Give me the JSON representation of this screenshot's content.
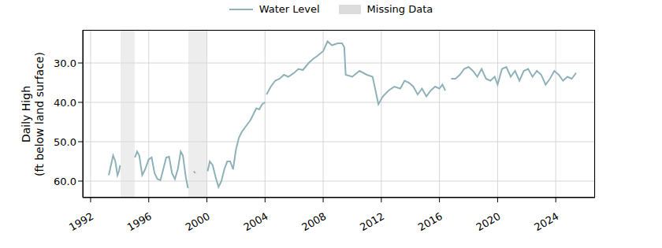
{
  "chart_data": {
    "type": "line",
    "ylabel": [
      "Daily High",
      "(ft below land surface)"
    ],
    "x": [
      1993.25,
      1993.4,
      1993.55,
      1993.7,
      1993.85,
      1993.95,
      1994.03,
      1994.5,
      1995.05,
      1995.2,
      1995.35,
      1995.55,
      1995.75,
      1996.0,
      1996.2,
      1996.4,
      1996.6,
      1996.8,
      1997.0,
      1997.2,
      1997.4,
      1997.6,
      1997.8,
      1998.0,
      1998.2,
      1998.35,
      1998.55,
      1998.7,
      1998.9,
      1999.1,
      1999.2,
      1999.6,
      2000.05,
      2000.2,
      2000.4,
      2000.6,
      2000.8,
      2001.0,
      2001.2,
      2001.4,
      2001.6,
      2001.8,
      2002.0,
      2002.2,
      2002.4,
      2002.6,
      2002.8,
      2003.0,
      2003.2,
      2003.4,
      2003.6,
      2003.8,
      2004.0,
      2004.05,
      2004.1,
      2004.4,
      2004.7,
      2005.0,
      2005.3,
      2005.6,
      2006.0,
      2006.3,
      2006.6,
      2007.0,
      2007.3,
      2007.6,
      2008.0,
      2008.3,
      2008.6,
      2009.0,
      2009.3,
      2009.45,
      2009.55,
      2010.0,
      2010.5,
      2011.0,
      2011.4,
      2011.8,
      2012.1,
      2012.5,
      2012.9,
      2013.3,
      2013.6,
      2013.9,
      2014.2,
      2014.5,
      2014.8,
      2015.1,
      2015.4,
      2015.7,
      2016.0,
      2016.2,
      2016.4,
      2016.6,
      2016.8,
      2017.1,
      2017.4,
      2017.7,
      2018.0,
      2018.3,
      2018.6,
      2018.9,
      2019.2,
      2019.5,
      2019.8,
      2020.0,
      2020.3,
      2020.6,
      2020.9,
      2021.2,
      2021.5,
      2021.8,
      2022.1,
      2022.4,
      2022.7,
      2023.0,
      2023.3,
      2023.6,
      2023.9,
      2024.2,
      2024.5,
      2024.8,
      2025.1,
      2025.4
    ],
    "series": [
      {
        "name": "Water Level",
        "color": "#8fb1b8",
        "values": [
          58.5,
          56,
          53.5,
          55,
          58.5,
          57.5,
          56,
          null,
          54,
          52.5,
          53.5,
          58.5,
          57,
          54.5,
          54,
          58,
          59.5,
          59.8,
          57,
          54,
          53.8,
          58,
          59.5,
          57,
          52.5,
          53.5,
          59,
          61.8,
          null,
          57.5,
          58,
          null,
          57.5,
          55,
          56,
          59,
          61.5,
          60,
          57,
          55,
          55,
          57,
          52,
          49,
          47.5,
          46.5,
          45.5,
          44.5,
          43,
          41.5,
          41.8,
          40.5,
          40,
          null,
          38,
          36,
          34.5,
          34,
          33,
          33.5,
          32.5,
          31.5,
          31.8,
          30,
          29,
          28.2,
          27,
          24.5,
          25.5,
          25,
          25,
          26,
          33,
          33.5,
          32,
          33,
          33.5,
          40.5,
          38.5,
          37,
          36,
          36.5,
          34.5,
          35,
          36,
          38,
          36.5,
          38.5,
          37,
          36,
          36.5,
          35.5,
          37,
          null,
          34,
          34,
          33,
          31.5,
          31,
          32,
          33.5,
          31.5,
          34,
          34.5,
          33.5,
          35.5,
          31.5,
          31,
          33.5,
          32,
          34.5,
          32,
          31.5,
          33.5,
          32,
          33,
          35.5,
          34,
          32,
          33,
          34.5,
          33.5,
          34,
          32.5
        ]
      }
    ],
    "missing_data": {
      "name": "Missing Data",
      "color": "#dcdcdc",
      "ranges": [
        [
          1994.06,
          1995.03
        ],
        [
          1998.72,
          1999.97
        ]
      ]
    },
    "xlim": [
      1991.46,
      2026.7
    ],
    "xticks": [
      1992,
      1996,
      2000,
      2004,
      2008,
      2012,
      2016,
      2020,
      2024
    ],
    "ylim": [
      64.2,
      21.6
    ],
    "yticks": [
      {
        "value": 30,
        "label": "30.0"
      },
      {
        "value": 40,
        "label": "40.0"
      },
      {
        "value": 50,
        "label": "50.0"
      },
      {
        "value": 60,
        "label": "60.0"
      }
    ],
    "grid": true,
    "legend": "top"
  }
}
